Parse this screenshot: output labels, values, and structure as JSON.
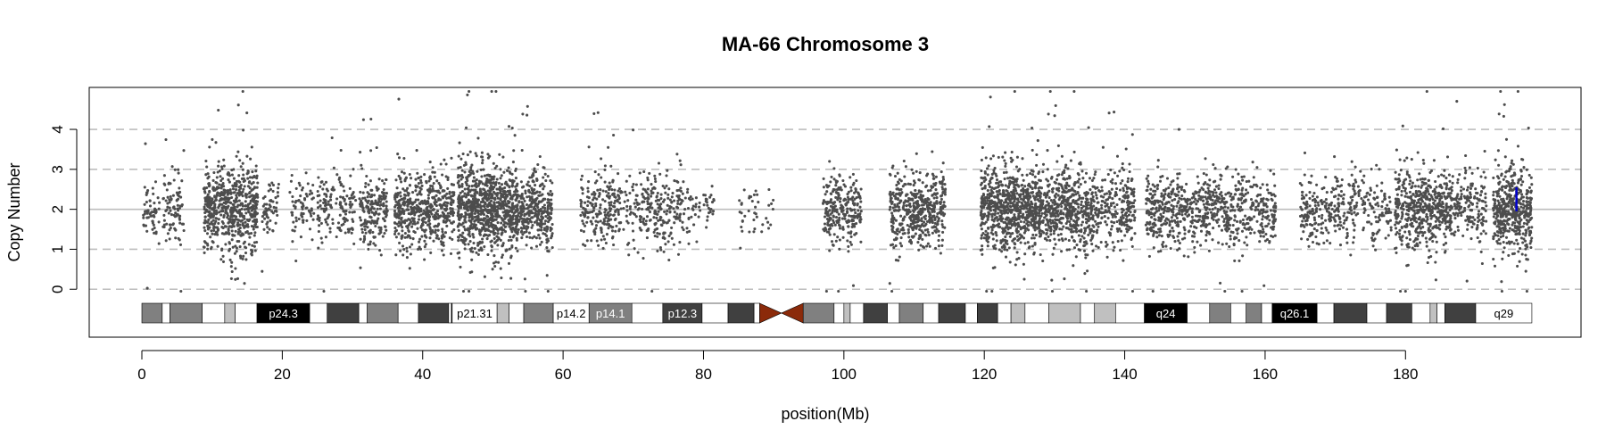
{
  "chart_data": {
    "type": "scatter",
    "title": "MA-66  Chromosome 3",
    "xlabel": "position(Mb)",
    "ylabel": "Copy Number",
    "xlim": [
      -7.5,
      205
    ],
    "ylim": [
      -1.2,
      5.05
    ],
    "x_ticks": [
      "0",
      "20",
      "40",
      "60",
      "80",
      "100",
      "120",
      "140",
      "160",
      "180"
    ],
    "x_tick_values": [
      0,
      20,
      40,
      60,
      80,
      100,
      120,
      140,
      160,
      180
    ],
    "y_ticks": [
      "0",
      "1",
      "2",
      "3",
      "4"
    ],
    "y_tick_values": [
      0,
      1,
      2,
      3,
      4
    ],
    "dashed_reference_lines": [
      0,
      1,
      3,
      4
    ],
    "solid_reference_line": 2,
    "point_color": "#4d4d4d",
    "marker_color": "#0000cc",
    "marker": {
      "x": 195.8,
      "y_low": 1.95,
      "y_high": 2.55
    },
    "median_copy_number": 2,
    "data_clusters_mb": [
      {
        "from": 0.2,
        "to": 2.5,
        "density": 60,
        "spread": 0.38
      },
      {
        "from": 3.0,
        "to": 6.0,
        "density": 90,
        "spread": 0.42
      },
      {
        "from": 8.8,
        "to": 16.5,
        "density": 620,
        "spread": 0.52
      },
      {
        "from": 17.0,
        "to": 19.5,
        "density": 60,
        "spread": 0.38
      },
      {
        "from": 21.0,
        "to": 24.5,
        "density": 70,
        "spread": 0.4
      },
      {
        "from": 25.0,
        "to": 30.5,
        "density": 150,
        "spread": 0.42
      },
      {
        "from": 31.0,
        "to": 35.0,
        "density": 190,
        "spread": 0.44
      },
      {
        "from": 36.0,
        "to": 41.5,
        "density": 360,
        "spread": 0.47
      },
      {
        "from": 41.5,
        "to": 44.5,
        "density": 170,
        "spread": 0.45
      },
      {
        "from": 45.0,
        "to": 53.5,
        "density": 880,
        "spread": 0.56
      },
      {
        "from": 53.5,
        "to": 58.5,
        "density": 330,
        "spread": 0.46
      },
      {
        "from": 62.5,
        "to": 67.5,
        "density": 190,
        "spread": 0.42
      },
      {
        "from": 67.5,
        "to": 73.0,
        "density": 140,
        "spread": 0.42
      },
      {
        "from": 73.0,
        "to": 77.0,
        "density": 140,
        "spread": 0.5
      },
      {
        "from": 77.0,
        "to": 81.5,
        "density": 60,
        "spread": 0.38
      },
      {
        "from": 85.0,
        "to": 90.0,
        "density": 40,
        "spread": 0.38
      },
      {
        "from": 97.0,
        "to": 102.5,
        "density": 260,
        "spread": 0.45
      },
      {
        "from": 106.5,
        "to": 110.0,
        "density": 200,
        "spread": 0.45
      },
      {
        "from": 110.0,
        "to": 114.5,
        "density": 280,
        "spread": 0.46
      },
      {
        "from": 119.5,
        "to": 128.0,
        "density": 780,
        "spread": 0.52
      },
      {
        "from": 128.0,
        "to": 135.5,
        "density": 520,
        "spread": 0.5
      },
      {
        "from": 135.5,
        "to": 141.5,
        "density": 260,
        "spread": 0.44
      },
      {
        "from": 143.0,
        "to": 153.5,
        "density": 480,
        "spread": 0.46
      },
      {
        "from": 153.5,
        "to": 161.5,
        "density": 300,
        "spread": 0.44
      },
      {
        "from": 165.0,
        "to": 173.5,
        "density": 260,
        "spread": 0.42
      },
      {
        "from": 173.5,
        "to": 178.0,
        "density": 100,
        "spread": 0.4
      },
      {
        "from": 178.5,
        "to": 186.5,
        "density": 520,
        "spread": 0.5
      },
      {
        "from": 186.5,
        "to": 191.5,
        "density": 180,
        "spread": 0.44
      },
      {
        "from": 192.5,
        "to": 198.0,
        "density": 460,
        "spread": 0.55
      }
    ],
    "ideogram": {
      "centromere_mb": [
        88.0,
        94.2
      ],
      "centromere_color": "#8b2a0a",
      "bands": [
        {
          "start": 0.0,
          "end": 2.9,
          "fill": "#808080",
          "label": ""
        },
        {
          "start": 2.9,
          "end": 4.0,
          "fill": "#ffffff",
          "label": ""
        },
        {
          "start": 4.0,
          "end": 8.6,
          "fill": "#808080",
          "label": ""
        },
        {
          "start": 8.6,
          "end": 11.8,
          "fill": "#ffffff",
          "label": ""
        },
        {
          "start": 11.8,
          "end": 13.3,
          "fill": "#c0c0c0",
          "label": ""
        },
        {
          "start": 13.3,
          "end": 16.4,
          "fill": "#ffffff",
          "label": ""
        },
        {
          "start": 16.4,
          "end": 23.9,
          "fill": "#000000",
          "label": "p24.3"
        },
        {
          "start": 23.9,
          "end": 26.4,
          "fill": "#ffffff",
          "label": ""
        },
        {
          "start": 26.4,
          "end": 30.9,
          "fill": "#404040",
          "label": ""
        },
        {
          "start": 30.9,
          "end": 32.1,
          "fill": "#ffffff",
          "label": ""
        },
        {
          "start": 32.1,
          "end": 36.5,
          "fill": "#808080",
          "label": ""
        },
        {
          "start": 36.5,
          "end": 39.4,
          "fill": "#ffffff",
          "label": ""
        },
        {
          "start": 39.4,
          "end": 43.7,
          "fill": "#404040",
          "label": ""
        },
        {
          "start": 43.7,
          "end": 44.1,
          "fill": "#ffffff",
          "label": ""
        },
        {
          "start": 44.1,
          "end": 44.2,
          "fill": "#000000",
          "label": ""
        },
        {
          "start": 44.2,
          "end": 50.6,
          "fill": "#ffffff",
          "label": "p21.31"
        },
        {
          "start": 50.6,
          "end": 52.3,
          "fill": "#c0c0c0",
          "label": ""
        },
        {
          "start": 52.3,
          "end": 54.4,
          "fill": "#ffffff",
          "label": ""
        },
        {
          "start": 54.4,
          "end": 58.6,
          "fill": "#808080",
          "label": ""
        },
        {
          "start": 58.6,
          "end": 63.7,
          "fill": "#ffffff",
          "label": "p14.2"
        },
        {
          "start": 63.7,
          "end": 69.8,
          "fill": "#808080",
          "label": "p14.1"
        },
        {
          "start": 69.8,
          "end": 74.2,
          "fill": "#ffffff",
          "label": ""
        },
        {
          "start": 74.2,
          "end": 79.8,
          "fill": "#404040",
          "label": "p12.3"
        },
        {
          "start": 79.8,
          "end": 83.5,
          "fill": "#ffffff",
          "label": ""
        },
        {
          "start": 83.5,
          "end": 87.2,
          "fill": "#404040",
          "label": ""
        },
        {
          "start": 87.2,
          "end": 88.0,
          "fill": "#ffffff",
          "label": ""
        },
        {
          "start": 94.2,
          "end": 98.6,
          "fill": "#808080",
          "label": ""
        },
        {
          "start": 98.6,
          "end": 100.0,
          "fill": "#ffffff",
          "label": ""
        },
        {
          "start": 100.0,
          "end": 100.9,
          "fill": "#c0c0c0",
          "label": ""
        },
        {
          "start": 100.9,
          "end": 102.8,
          "fill": "#ffffff",
          "label": ""
        },
        {
          "start": 102.8,
          "end": 106.2,
          "fill": "#404040",
          "label": ""
        },
        {
          "start": 106.2,
          "end": 107.9,
          "fill": "#ffffff",
          "label": ""
        },
        {
          "start": 107.9,
          "end": 111.3,
          "fill": "#808080",
          "label": ""
        },
        {
          "start": 111.3,
          "end": 113.5,
          "fill": "#ffffff",
          "label": ""
        },
        {
          "start": 113.5,
          "end": 117.3,
          "fill": "#404040",
          "label": ""
        },
        {
          "start": 117.3,
          "end": 119.0,
          "fill": "#ffffff",
          "label": ""
        },
        {
          "start": 119.0,
          "end": 121.9,
          "fill": "#404040",
          "label": ""
        },
        {
          "start": 121.9,
          "end": 123.8,
          "fill": "#ffffff",
          "label": ""
        },
        {
          "start": 123.8,
          "end": 125.8,
          "fill": "#c0c0c0",
          "label": ""
        },
        {
          "start": 125.8,
          "end": 129.2,
          "fill": "#ffffff",
          "label": ""
        },
        {
          "start": 129.2,
          "end": 133.7,
          "fill": "#c0c0c0",
          "label": ""
        },
        {
          "start": 133.7,
          "end": 135.7,
          "fill": "#ffffff",
          "label": ""
        },
        {
          "start": 135.7,
          "end": 138.7,
          "fill": "#c0c0c0",
          "label": ""
        },
        {
          "start": 138.7,
          "end": 142.8,
          "fill": "#ffffff",
          "label": ""
        },
        {
          "start": 142.8,
          "end": 148.9,
          "fill": "#000000",
          "label": "q24"
        },
        {
          "start": 148.9,
          "end": 152.1,
          "fill": "#ffffff",
          "label": ""
        },
        {
          "start": 152.1,
          "end": 155.1,
          "fill": "#808080",
          "label": ""
        },
        {
          "start": 155.1,
          "end": 157.3,
          "fill": "#ffffff",
          "label": ""
        },
        {
          "start": 157.3,
          "end": 159.5,
          "fill": "#808080",
          "label": ""
        },
        {
          "start": 159.5,
          "end": 161.0,
          "fill": "#ffffff",
          "label": ""
        },
        {
          "start": 161.0,
          "end": 167.4,
          "fill": "#000000",
          "label": "q26.1"
        },
        {
          "start": 167.4,
          "end": 169.8,
          "fill": "#ffffff",
          "label": ""
        },
        {
          "start": 169.8,
          "end": 174.5,
          "fill": "#404040",
          "label": ""
        },
        {
          "start": 174.5,
          "end": 177.3,
          "fill": "#ffffff",
          "label": ""
        },
        {
          "start": 177.3,
          "end": 180.9,
          "fill": "#404040",
          "label": ""
        },
        {
          "start": 180.9,
          "end": 183.5,
          "fill": "#ffffff",
          "label": ""
        },
        {
          "start": 183.5,
          "end": 184.5,
          "fill": "#c0c0c0",
          "label": ""
        },
        {
          "start": 184.5,
          "end": 185.6,
          "fill": "#ffffff",
          "label": ""
        },
        {
          "start": 185.6,
          "end": 190.0,
          "fill": "#404040",
          "label": ""
        },
        {
          "start": 190.0,
          "end": 198.0,
          "fill": "#ffffff",
          "label": "q29"
        }
      ]
    }
  }
}
